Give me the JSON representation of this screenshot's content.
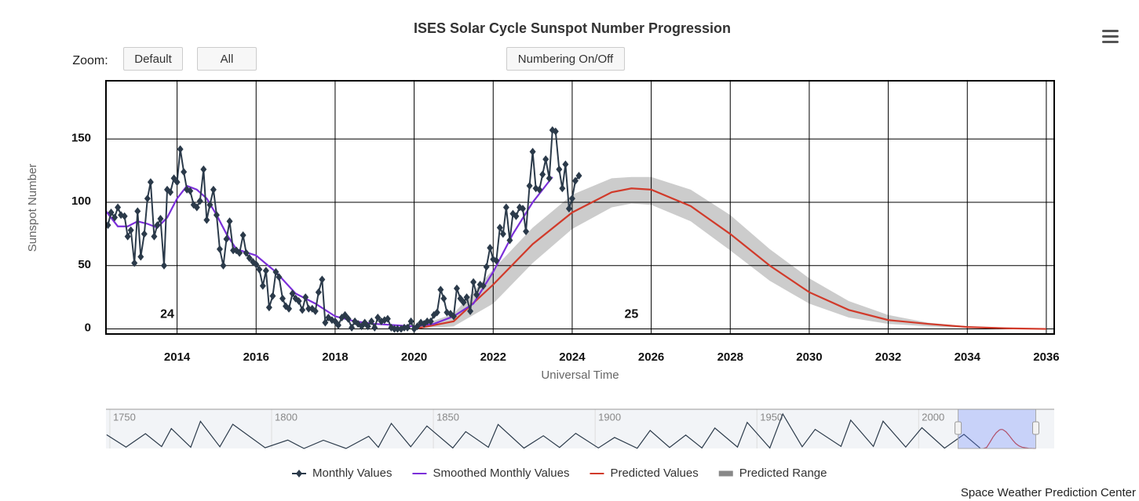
{
  "ui": {
    "zoom_label": "Zoom:",
    "default_button": "Default",
    "all_button": "All",
    "numbering_button": "Numbering On/Off",
    "credit": "Space Weather Prediction Center"
  },
  "chart_data": {
    "type": "line",
    "title": "ISES Solar Cycle Sunspot Number Progression",
    "x_label": "Universal Time",
    "y_label": "Sunspot Number",
    "xlim": [
      2012.2,
      2036.2
    ],
    "xticks": [
      2014,
      2016,
      2018,
      2020,
      2022,
      2024,
      2026,
      2028,
      2030,
      2032,
      2034,
      2036
    ],
    "ylim": [
      -4,
      196
    ],
    "yticks": [
      0,
      50,
      100,
      150
    ],
    "grid": true,
    "annotations": [
      {
        "text": "24",
        "x": 2013.75,
        "y": 5
      },
      {
        "text": "25",
        "x": 2025.5,
        "y": 5
      }
    ],
    "series": [
      {
        "name": "Monthly Values",
        "color": "#2b3a4a",
        "marker": "diamond",
        "x": [
          2012.25,
          2012.33,
          2012.42,
          2012.5,
          2012.58,
          2012.67,
          2012.75,
          2012.83,
          2012.92,
          2013,
          2013.08,
          2013.17,
          2013.25,
          2013.33,
          2013.42,
          2013.5,
          2013.58,
          2013.67,
          2013.75,
          2013.83,
          2013.92,
          2014,
          2014.08,
          2014.17,
          2014.25,
          2014.33,
          2014.42,
          2014.5,
          2014.58,
          2014.67,
          2014.75,
          2014.83,
          2014.92,
          2015,
          2015.08,
          2015.17,
          2015.25,
          2015.33,
          2015.42,
          2015.5,
          2015.58,
          2015.67,
          2015.75,
          2015.83,
          2015.92,
          2016,
          2016.08,
          2016.17,
          2016.25,
          2016.33,
          2016.42,
          2016.5,
          2016.58,
          2016.67,
          2016.75,
          2016.83,
          2016.92,
          2017,
          2017.08,
          2017.17,
          2017.25,
          2017.33,
          2017.42,
          2017.5,
          2017.58,
          2017.67,
          2017.75,
          2017.83,
          2017.92,
          2018,
          2018.08,
          2018.17,
          2018.25,
          2018.33,
          2018.42,
          2018.5,
          2018.58,
          2018.67,
          2018.75,
          2018.83,
          2018.92,
          2019,
          2019.08,
          2019.17,
          2019.25,
          2019.33,
          2019.42,
          2019.5,
          2019.58,
          2019.67,
          2019.75,
          2019.83,
          2019.92,
          2020,
          2020.08,
          2020.17,
          2020.25,
          2020.33,
          2020.42,
          2020.5,
          2020.58,
          2020.67,
          2020.75,
          2020.83,
          2020.92,
          2021,
          2021.08,
          2021.17,
          2021.25,
          2021.33,
          2021.42,
          2021.5,
          2021.58,
          2021.67,
          2021.75,
          2021.83,
          2021.92,
          2022,
          2022.08,
          2022.17,
          2022.25,
          2022.33,
          2022.42,
          2022.5,
          2022.58,
          2022.67,
          2022.75,
          2022.83,
          2022.92,
          2023,
          2023.08,
          2023.17,
          2023.25,
          2023.33,
          2023.42,
          2023.5,
          2023.58,
          2023.67,
          2023.75,
          2023.83,
          2023.92,
          2024,
          2024.08,
          2024.17
        ],
        "values": [
          82,
          92,
          88,
          96,
          90,
          89,
          73,
          78,
          52,
          93,
          57,
          75,
          103,
          116,
          73,
          82,
          87,
          50,
          110,
          108,
          119,
          116,
          142,
          124,
          110,
          109,
          98,
          96,
          101,
          126,
          86,
          98,
          110,
          90,
          63,
          50,
          71,
          85,
          62,
          62,
          60,
          74,
          60,
          56,
          53,
          51,
          47,
          34,
          46,
          17,
          26,
          45,
          41,
          24,
          18,
          16,
          28,
          24,
          22,
          15,
          25,
          16,
          16,
          14,
          29,
          39,
          5,
          9,
          7,
          6,
          3,
          9,
          11,
          8,
          1,
          6,
          4,
          2,
          5,
          2,
          6,
          1,
          9,
          6,
          7,
          8,
          1,
          0,
          0,
          0,
          1,
          1,
          6,
          0,
          2,
          5,
          4,
          6,
          6,
          11,
          13,
          31,
          24,
          13,
          12,
          10,
          32,
          24,
          21,
          25,
          14,
          37,
          27,
          35,
          34,
          49,
          64,
          55,
          54,
          80,
          75,
          96,
          70,
          91,
          89,
          96,
          95,
          77,
          113,
          140,
          111,
          110,
          122,
          134,
          119,
          157,
          156,
          126,
          111,
          130,
          95,
          103,
          117,
          121
        ]
      },
      {
        "name": "Smoothed Monthly Values",
        "color": "#7b2fd9",
        "x": [
          2012.2,
          2012.5,
          2012.75,
          2013,
          2013.25,
          2013.5,
          2013.75,
          2014,
          2014.25,
          2014.5,
          2014.75,
          2015,
          2015.25,
          2015.5,
          2016,
          2016.5,
          2017,
          2017.5,
          2018,
          2018.5,
          2019,
          2019.5,
          2020,
          2020.5,
          2021,
          2021.5,
          2022,
          2022.5,
          2023,
          2023.5
        ],
        "values": [
          93,
          81,
          81,
          85,
          83,
          80,
          88,
          103,
          113,
          110,
          103,
          90,
          75,
          63,
          58,
          45,
          28,
          20,
          10,
          6,
          4,
          3,
          2,
          4,
          10,
          20,
          45,
          75,
          100,
          120
        ]
      },
      {
        "name": "Predicted Values",
        "color": "#d13a2a",
        "x": [
          2020,
          2021,
          2022,
          2023,
          2024,
          2025,
          2025.5,
          2026,
          2027,
          2028,
          2029,
          2030,
          2031,
          2032,
          2033,
          2034,
          2035,
          2036
        ],
        "values": [
          0,
          6,
          35,
          67,
          92,
          108,
          111,
          110,
          97,
          75,
          50,
          29,
          15,
          7,
          4,
          1.5,
          0.5,
          0
        ]
      },
      {
        "name": "Predicted Range",
        "color": "#cccccc",
        "x": [
          2020,
          2021,
          2022,
          2023,
          2024,
          2025,
          2025.5,
          2026,
          2027,
          2028,
          2029,
          2030,
          2031,
          2032,
          2033,
          2034,
          2035,
          2036
        ],
        "low": [
          0,
          2,
          20,
          52,
          79,
          96,
          99,
          98,
          85,
          62,
          38,
          20,
          9,
          4,
          2,
          1,
          0,
          0
        ],
        "high": [
          1,
          12,
          47,
          80,
          106,
          119,
          120,
          120,
          110,
          90,
          63,
          40,
          22,
          11,
          5,
          2,
          1,
          0
        ]
      }
    ],
    "navigator": {
      "xlim": [
        1748.8,
        2041.9
      ],
      "ylim": [
        0,
        210
      ],
      "xticks": [
        1750,
        1800,
        1850,
        1900,
        1950,
        2000
      ],
      "color": "#2b3a4a",
      "x": [
        1749,
        1755,
        1761,
        1766,
        1769,
        1775,
        1778,
        1784,
        1788,
        1798,
        1805,
        1810,
        1816,
        1823,
        1830,
        1833,
        1837,
        1843,
        1848,
        1856,
        1860,
        1867,
        1870,
        1878,
        1884,
        1889,
        1894,
        1901,
        1906,
        1913,
        1917,
        1923,
        1928,
        1933,
        1937,
        1944,
        1947,
        1954,
        1958,
        1964,
        1968,
        1976,
        1979,
        1986,
        1989,
        1996,
        2001,
        2008,
        2014,
        2019
      ],
      "values": [
        80,
        8,
        86,
        11,
        116,
        7,
        158,
        10,
        141,
        4,
        49,
        0,
        48,
        0,
        71,
        7,
        146,
        10,
        131,
        3,
        98,
        7,
        140,
        2,
        74,
        6,
        88,
        3,
        64,
        1,
        105,
        6,
        78,
        3,
        119,
        8,
        152,
        3,
        201,
        10,
        111,
        12,
        165,
        12,
        159,
        8,
        121,
        2,
        82,
        2
      ]
    }
  }
}
